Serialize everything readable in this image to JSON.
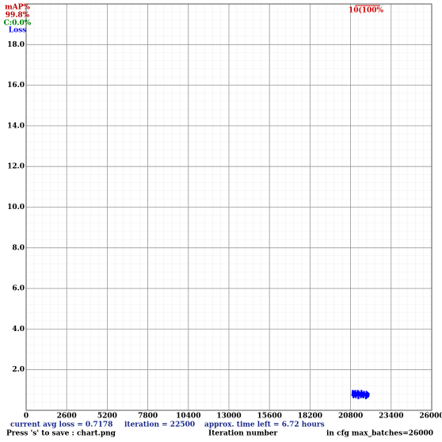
{
  "chart_data": {
    "type": "line",
    "xlim": [
      0,
      26000
    ],
    "ylim": [
      0,
      20
    ],
    "xticks": [
      0,
      2600,
      5200,
      7800,
      10400,
      13000,
      15600,
      18200,
      20800,
      23400,
      26000
    ],
    "yticks": [
      {
        "value": 2,
        "label": "2.0"
      },
      {
        "value": 4,
        "label": "4.0"
      },
      {
        "value": 6,
        "label": "6.0"
      },
      {
        "value": 8,
        "label": "8.0"
      },
      {
        "value": 10,
        "label": "10.0"
      },
      {
        "value": 12,
        "label": "12.0"
      },
      {
        "value": 14,
        "label": "14.0"
      },
      {
        "value": 16,
        "label": "16.0"
      },
      {
        "value": 18,
        "label": "18.0"
      }
    ],
    "x_label": "Iteration number",
    "grid": true,
    "legend": {
      "map_title": "mAP%",
      "map_value": "99.8%",
      "class_text": "C:0.0%"
    },
    "map_marker": "10(100%",
    "status": {
      "loss": "current avg loss = 0.7178",
      "iteration": "iteration = 22500",
      "time_left": "approx. time left = 6.72 hours",
      "save": "Press 's' to save : chart.png",
      "max_batches": "in cfg max_batches=26000"
    },
    "series": [
      {
        "name": "Loss",
        "color": "#0000ff",
        "x": [
          20900,
          20940,
          20980,
          21020,
          21060,
          21100,
          21140,
          21180,
          21220,
          21260,
          21300,
          21340,
          21380,
          21420,
          21460,
          21500,
          21540,
          21580,
          21620,
          21660,
          21700,
          21740,
          21780,
          21820,
          21860,
          21900,
          21940,
          21980
        ],
        "values": [
          0.7,
          1.0,
          0.6,
          0.95,
          0.65,
          1.0,
          0.6,
          0.9,
          0.7,
          1.0,
          0.55,
          0.95,
          0.7,
          0.9,
          0.6,
          1.0,
          0.65,
          0.9,
          0.6,
          0.95,
          0.7,
          0.85,
          0.55,
          0.95,
          0.6,
          0.9,
          0.65,
          0.85
        ]
      }
    ]
  }
}
